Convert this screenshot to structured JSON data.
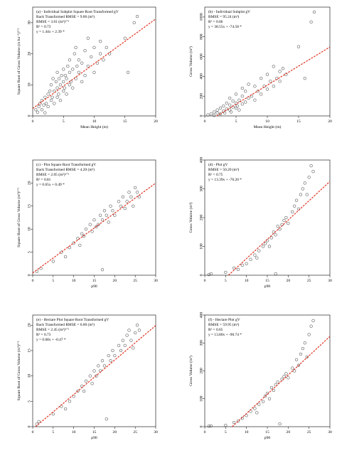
{
  "figure": {
    "chart_data": [
      {
        "type": "scatter",
        "xlabel": "Mean Height (m)",
        "ylabel": "Square Root of Gross Volume (m ha⁻¹)¹ᐟ²",
        "xlim": [
          0,
          20
        ],
        "ylim": [
          0,
          35
        ],
        "xticks": [
          0,
          5,
          10,
          15,
          20
        ],
        "yticks": [
          0,
          10,
          20,
          30
        ],
        "annotations": [
          "(a) - Individual Subplot Square Root Transformed gV",
          "Back Transformed RMSE = 9.06 (m³)",
          "RMSE = 3.01 (m³)¹ᐟ²",
          "R² = 0.73",
          "y = 1.44x + 2.39 *"
        ],
        "fit": {
          "slope": 1.44,
          "intercept": 2.39
        },
        "points": [
          [
            0.5,
            2
          ],
          [
            0.8,
            1.2
          ],
          [
            1,
            3
          ],
          [
            1.2,
            4
          ],
          [
            1.5,
            2
          ],
          [
            1.5,
            5
          ],
          [
            1.8,
            3.5
          ],
          [
            2,
            1
          ],
          [
            2,
            6
          ],
          [
            2.2,
            4
          ],
          [
            2.5,
            7
          ],
          [
            2.5,
            3
          ],
          [
            2.8,
            8
          ],
          [
            3,
            5
          ],
          [
            3,
            10
          ],
          [
            3.2,
            6
          ],
          [
            3.3,
            12
          ],
          [
            3.5,
            4
          ],
          [
            3.5,
            8
          ],
          [
            3.8,
            11
          ],
          [
            4,
            6
          ],
          [
            4,
            9
          ],
          [
            4,
            14
          ],
          [
            4.2,
            7
          ],
          [
            4.3,
            12
          ],
          [
            4.5,
            10
          ],
          [
            4.5,
            5
          ],
          [
            4.7,
            13
          ],
          [
            5,
            8
          ],
          [
            5,
            11
          ],
          [
            5,
            15
          ],
          [
            5.2,
            9
          ],
          [
            5.3,
            13
          ],
          [
            5.5,
            7
          ],
          [
            5.5,
            12
          ],
          [
            5.7,
            16
          ],
          [
            6,
            10
          ],
          [
            6,
            14
          ],
          [
            6,
            18
          ],
          [
            6.2,
            11
          ],
          [
            6.5,
            9
          ],
          [
            6.5,
            15
          ],
          [
            6.8,
            20
          ],
          [
            7,
            12
          ],
          [
            7,
            22
          ],
          [
            7.2,
            16
          ],
          [
            7.5,
            14
          ],
          [
            7.5,
            18
          ],
          [
            8,
            11
          ],
          [
            8,
            17
          ],
          [
            8.5,
            13
          ],
          [
            8.5,
            21
          ],
          [
            9,
            16
          ],
          [
            9,
            25
          ],
          [
            9.5,
            19
          ],
          [
            10,
            14
          ],
          [
            10,
            22
          ],
          [
            10.5,
            17
          ],
          [
            11,
            20
          ],
          [
            11,
            24
          ],
          [
            11.5,
            18
          ],
          [
            12,
            22
          ],
          [
            12.5,
            20
          ],
          [
            15,
            25
          ],
          [
            15.5,
            14
          ],
          [
            16.5,
            30
          ],
          [
            17,
            32
          ]
        ]
      },
      {
        "type": "scatter",
        "xlabel": "Mean Height (m)",
        "ylabel": "Gross Volume (m³)",
        "xlim": [
          0,
          20
        ],
        "ylim": [
          0,
          1100
        ],
        "xticks": [
          0,
          5,
          10,
          15,
          20
        ],
        "yticks": [
          0,
          200,
          400,
          600,
          800,
          1000
        ],
        "annotations": [
          "(b) - Individual Subplot gV",
          "RMSE = 95.24 (m³)",
          "R² = 0.66",
          "y = 38.55x + -74.58 *"
        ],
        "fit": {
          "slope": 38.55,
          "intercept": -74.58
        },
        "points": [
          [
            0.5,
            10
          ],
          [
            1,
            20
          ],
          [
            1.5,
            5
          ],
          [
            1.5,
            40
          ],
          [
            2,
            30
          ],
          [
            2,
            60
          ],
          [
            2.5,
            20
          ],
          [
            2.5,
            80
          ],
          [
            3,
            50
          ],
          [
            3,
            100
          ],
          [
            3.2,
            30
          ],
          [
            3.5,
            70
          ],
          [
            3.5,
            130
          ],
          [
            4,
            60
          ],
          [
            4,
            110
          ],
          [
            4,
            180
          ],
          [
            4.2,
            40
          ],
          [
            4.5,
            90
          ],
          [
            4.5,
            150
          ],
          [
            5,
            80
          ],
          [
            5,
            130
          ],
          [
            5,
            220
          ],
          [
            5.2,
            100
          ],
          [
            5.5,
            160
          ],
          [
            5.5,
            60
          ],
          [
            6,
            120
          ],
          [
            6,
            200
          ],
          [
            6,
            280
          ],
          [
            6.5,
            140
          ],
          [
            6.5,
            250
          ],
          [
            7,
            180
          ],
          [
            7,
            320
          ],
          [
            7.5,
            200
          ],
          [
            8,
            160
          ],
          [
            8,
            300
          ],
          [
            8.5,
            250
          ],
          [
            9,
            220
          ],
          [
            9,
            380
          ],
          [
            9.5,
            300
          ],
          [
            10,
            270
          ],
          [
            10,
            420
          ],
          [
            10.5,
            350
          ],
          [
            11,
            300
          ],
          [
            11,
            500
          ],
          [
            11.5,
            380
          ],
          [
            12,
            450
          ],
          [
            12,
            350
          ],
          [
            12.5,
            480
          ],
          [
            13,
            420
          ],
          [
            15,
            700
          ],
          [
            16,
            380
          ],
          [
            17,
            950
          ],
          [
            17.5,
            1050
          ]
        ]
      },
      {
        "type": "scatter",
        "xlabel": "p90",
        "ylabel": "Square Root of Gross Volume (m³)¹ᐟ²",
        "xlim": [
          0,
          30
        ],
        "ylim": [
          0,
          25
        ],
        "xticks": [
          0,
          5,
          10,
          15,
          20,
          25,
          30
        ],
        "yticks": [
          0,
          5,
          10,
          15,
          20
        ],
        "annotations": [
          "(c) - Plot Square Root Transformed gV",
          "Back Transformed RMSE = 4.20 (m³)",
          "RMSE = 2.05 (m³)¹ᐟ²",
          "R² = 0.81",
          "y = 0.65x + 0.49 *"
        ],
        "fit": {
          "slope": 0.65,
          "intercept": 0.49
        },
        "points": [
          [
            1,
            0.8
          ],
          [
            2,
            1.5
          ],
          [
            5,
            3
          ],
          [
            7,
            5
          ],
          [
            8,
            4
          ],
          [
            9,
            6
          ],
          [
            10,
            7
          ],
          [
            11,
            8
          ],
          [
            11.5,
            6.5
          ],
          [
            12,
            9
          ],
          [
            12.5,
            8.5
          ],
          [
            13,
            10
          ],
          [
            14,
            11
          ],
          [
            14.5,
            9.5
          ],
          [
            15,
            12
          ],
          [
            15.5,
            10.5
          ],
          [
            16,
            11
          ],
          [
            16.5,
            13
          ],
          [
            17,
            12
          ],
          [
            17,
            1.2
          ],
          [
            17.5,
            14
          ],
          [
            18,
            13
          ],
          [
            18.5,
            11.5
          ],
          [
            19,
            15
          ],
          [
            19.5,
            14
          ],
          [
            20,
            13
          ],
          [
            21,
            16
          ],
          [
            21.5,
            15
          ],
          [
            22,
            17
          ],
          [
            22.5,
            14.5
          ],
          [
            23,
            16
          ],
          [
            23.5,
            18
          ],
          [
            24,
            17
          ],
          [
            24.5,
            15
          ],
          [
            25,
            19
          ],
          [
            25.5,
            18
          ],
          [
            26,
            17
          ]
        ]
      },
      {
        "type": "scatter",
        "xlabel": "p90",
        "ylabel": "Gross Volume (m³)",
        "xlim": [
          0,
          30
        ],
        "ylim": [
          0,
          400
        ],
        "xticks": [
          0,
          5,
          10,
          15,
          20,
          25,
          30
        ],
        "yticks": [
          0,
          100,
          200,
          300,
          400
        ],
        "annotations": [
          "(d) - Plot gV",
          "RMSE = 50.20 (m³)",
          "R² = 0.75",
          "y = 13.39x + -76.20 *"
        ],
        "fit": {
          "slope": 13.39,
          "intercept": -76.2
        },
        "points": [
          [
            1,
            2
          ],
          [
            1.5,
            5
          ],
          [
            5,
            10
          ],
          [
            7,
            25
          ],
          [
            8,
            20
          ],
          [
            9,
            35
          ],
          [
            10,
            40
          ],
          [
            11,
            55
          ],
          [
            12,
            70
          ],
          [
            12.5,
            60
          ],
          [
            13,
            85
          ],
          [
            14,
            100
          ],
          [
            14.5,
            110
          ],
          [
            15,
            120
          ],
          [
            15.5,
            100
          ],
          [
            16,
            130
          ],
          [
            16.5,
            150
          ],
          [
            17,
            140
          ],
          [
            17,
            5
          ],
          [
            17.5,
            170
          ],
          [
            18,
            160
          ],
          [
            18.5,
            175
          ],
          [
            19,
            190
          ],
          [
            19.5,
            200
          ],
          [
            20,
            180
          ],
          [
            21,
            220
          ],
          [
            21.5,
            240
          ],
          [
            22,
            260
          ],
          [
            22.5,
            230
          ],
          [
            23,
            280
          ],
          [
            23.5,
            300
          ],
          [
            24,
            320
          ],
          [
            24.5,
            280
          ],
          [
            25,
            340
          ],
          [
            25.5,
            380
          ],
          [
            26,
            360
          ]
        ]
      },
      {
        "type": "scatter",
        "xlabel": "p90",
        "ylabel": "Square Root of Gross Volume (m³)¹ᐟ²",
        "xlim": [
          0,
          30
        ],
        "ylim": [
          0,
          22
        ],
        "xticks": [
          0,
          5,
          10,
          15,
          20,
          25,
          30
        ],
        "yticks": [
          0,
          5,
          10,
          15,
          20
        ],
        "annotations": [
          "(e) - Hectare Plot Square Root Transformed gV",
          "Back Transformed RMSE = 6.00 (m³)",
          "RMSE = 2.45 (m³)¹ᐟ²",
          "R² = 0.73",
          "y = 0.68x + -0.47 *"
        ],
        "fit": {
          "slope": 0.68,
          "intercept": -0.47
        },
        "points": [
          [
            1,
            0.5
          ],
          [
            1.5,
            1
          ],
          [
            5,
            2.5
          ],
          [
            7,
            4
          ],
          [
            8,
            3.5
          ],
          [
            9,
            5
          ],
          [
            10,
            6
          ],
          [
            11,
            7
          ],
          [
            12,
            8
          ],
          [
            12.5,
            7
          ],
          [
            13,
            9
          ],
          [
            14,
            10
          ],
          [
            14.5,
            8.5
          ],
          [
            15,
            11
          ],
          [
            15.5,
            10
          ],
          [
            16,
            12
          ],
          [
            16.5,
            11
          ],
          [
            17,
            13
          ],
          [
            17.5,
            12
          ],
          [
            18,
            1.5
          ],
          [
            18.5,
            14
          ],
          [
            19,
            13
          ],
          [
            19.5,
            15
          ],
          [
            20,
            14
          ],
          [
            21,
            16
          ],
          [
            21.5,
            15
          ],
          [
            22,
            17
          ],
          [
            22.5,
            16
          ],
          [
            23,
            18
          ],
          [
            23.5,
            19
          ],
          [
            24,
            17
          ],
          [
            24.5,
            15.5
          ],
          [
            25,
            18.5
          ],
          [
            25.5,
            20
          ],
          [
            26,
            19
          ]
        ]
      },
      {
        "type": "scatter",
        "xlabel": "p90",
        "ylabel": "Gross Volume (m³)",
        "xlim": [
          0,
          30
        ],
        "ylim": [
          0,
          400
        ],
        "xticks": [
          0,
          5,
          10,
          15,
          20,
          25,
          30
        ],
        "yticks": [
          0,
          100,
          200,
          300,
          400
        ],
        "annotations": [
          "(f) - Hectare Plot gV",
          "RMSE = 59.95 (m³)",
          "R² = 0.65",
          "y = 13.80x + -90.74 *"
        ],
        "fit": {
          "slope": 13.8,
          "intercept": -90.74
        },
        "points": [
          [
            1,
            2
          ],
          [
            1.5,
            3
          ],
          [
            5,
            5
          ],
          [
            7,
            15
          ],
          [
            8,
            20
          ],
          [
            9,
            30
          ],
          [
            10,
            40
          ],
          [
            11,
            55
          ],
          [
            12,
            65
          ],
          [
            12.5,
            50
          ],
          [
            13,
            80
          ],
          [
            14,
            90
          ],
          [
            14.5,
            110
          ],
          [
            15,
            120
          ],
          [
            15.5,
            100
          ],
          [
            16,
            140
          ],
          [
            16.5,
            130
          ],
          [
            17,
            150
          ],
          [
            17.5,
            160
          ],
          [
            18,
            10
          ],
          [
            18.5,
            170
          ],
          [
            19,
            180
          ],
          [
            19.5,
            190
          ],
          [
            20,
            175
          ],
          [
            21,
            210
          ],
          [
            21.5,
            200
          ],
          [
            22,
            240
          ],
          [
            22.5,
            220
          ],
          [
            23,
            260
          ],
          [
            23.5,
            280
          ],
          [
            24,
            300
          ],
          [
            24.5,
            250
          ],
          [
            25,
            330
          ],
          [
            25.5,
            360
          ],
          [
            26,
            380
          ]
        ]
      }
    ]
  }
}
